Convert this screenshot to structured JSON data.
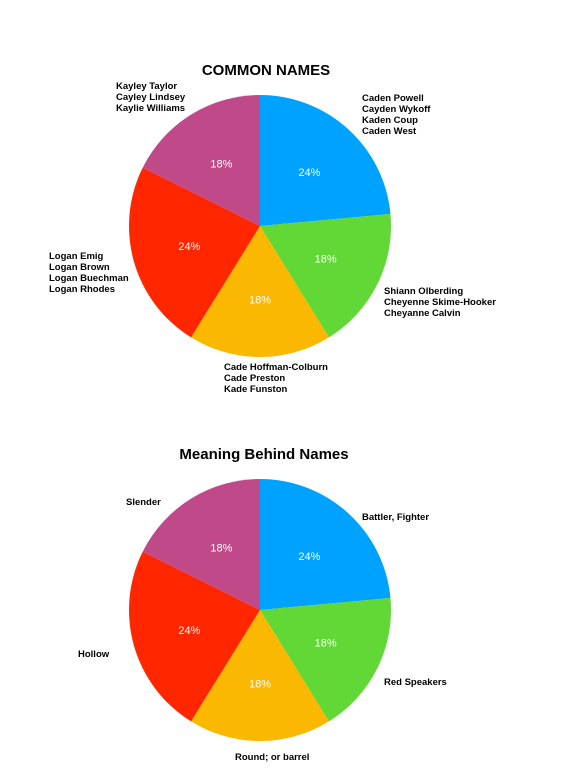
{
  "chart_data": [
    {
      "type": "pie",
      "title": "COMMON NAMES",
      "values": [
        24,
        18,
        18,
        24,
        18
      ],
      "slice_labels": [
        "24%",
        "18%",
        "18%",
        "24%",
        "18%"
      ],
      "colors": [
        "#00a2ff",
        "#61d836",
        "#fbb800",
        "#ff2600",
        "#c0498a"
      ],
      "categories": [
        [
          "Caden Powell",
          "Cayden Wykoff",
          "Kaden Coup",
          "Caden West"
        ],
        [
          "Shiann Olberding",
          "Cheyenne Skime-Hooker",
          "Cheyanne Calvin"
        ],
        [
          "Cade Hoffman-Colburn",
          "Cade Preston",
          "Kade Funston"
        ],
        [
          "Logan Emig",
          "Logan Brown",
          "Logan Buechman",
          "Logan Rhodes"
        ],
        [
          "Kayley Taylor",
          "Cayley Lindsey",
          "Kaylie Williams"
        ]
      ]
    },
    {
      "type": "pie",
      "title": "Meaning Behind Names",
      "values": [
        24,
        18,
        18,
        24,
        18
      ],
      "slice_labels": [
        "24%",
        "18%",
        "18%",
        "24%",
        "18%"
      ],
      "colors": [
        "#00a2ff",
        "#61d836",
        "#fbb800",
        "#ff2600",
        "#c0498a"
      ],
      "categories": [
        [
          "Battler, Fighter"
        ],
        [
          "Red Speakers"
        ],
        [
          "Round; or barrel"
        ],
        [
          "Hollow"
        ],
        [
          "Slender"
        ]
      ]
    }
  ]
}
